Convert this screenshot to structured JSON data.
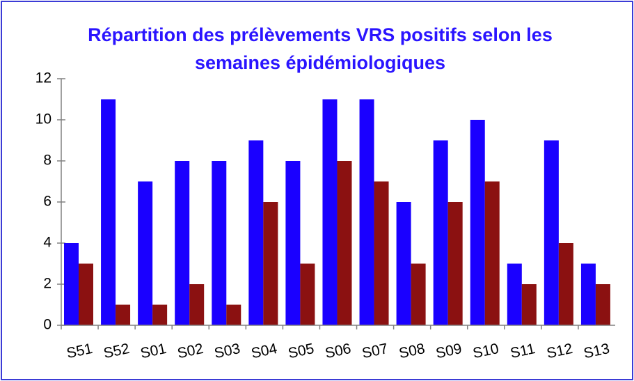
{
  "chart_data": {
    "type": "bar",
    "title": "Répartition des prélèvements VRS positifs selon les semaines épidémiologiques",
    "categories": [
      "S51",
      "S52",
      "S01",
      "S02",
      "S03",
      "S04",
      "S05",
      "S06",
      "S07",
      "S08",
      "S09",
      "S10",
      "S11",
      "S12",
      "S13"
    ],
    "series": [
      {
        "color": "#1a00ff",
        "values": [
          4,
          11,
          7,
          8,
          8,
          9,
          8,
          11,
          11,
          6,
          9,
          10,
          3,
          9,
          3
        ]
      },
      {
        "color": "#8b1111",
        "values": [
          3,
          1,
          1,
          2,
          1,
          6,
          3,
          8,
          7,
          3,
          6,
          7,
          2,
          4,
          2
        ]
      }
    ],
    "ylim": [
      0,
      12
    ],
    "yticks": [
      0,
      2,
      4,
      6,
      8,
      10,
      12
    ],
    "grid": false
  }
}
